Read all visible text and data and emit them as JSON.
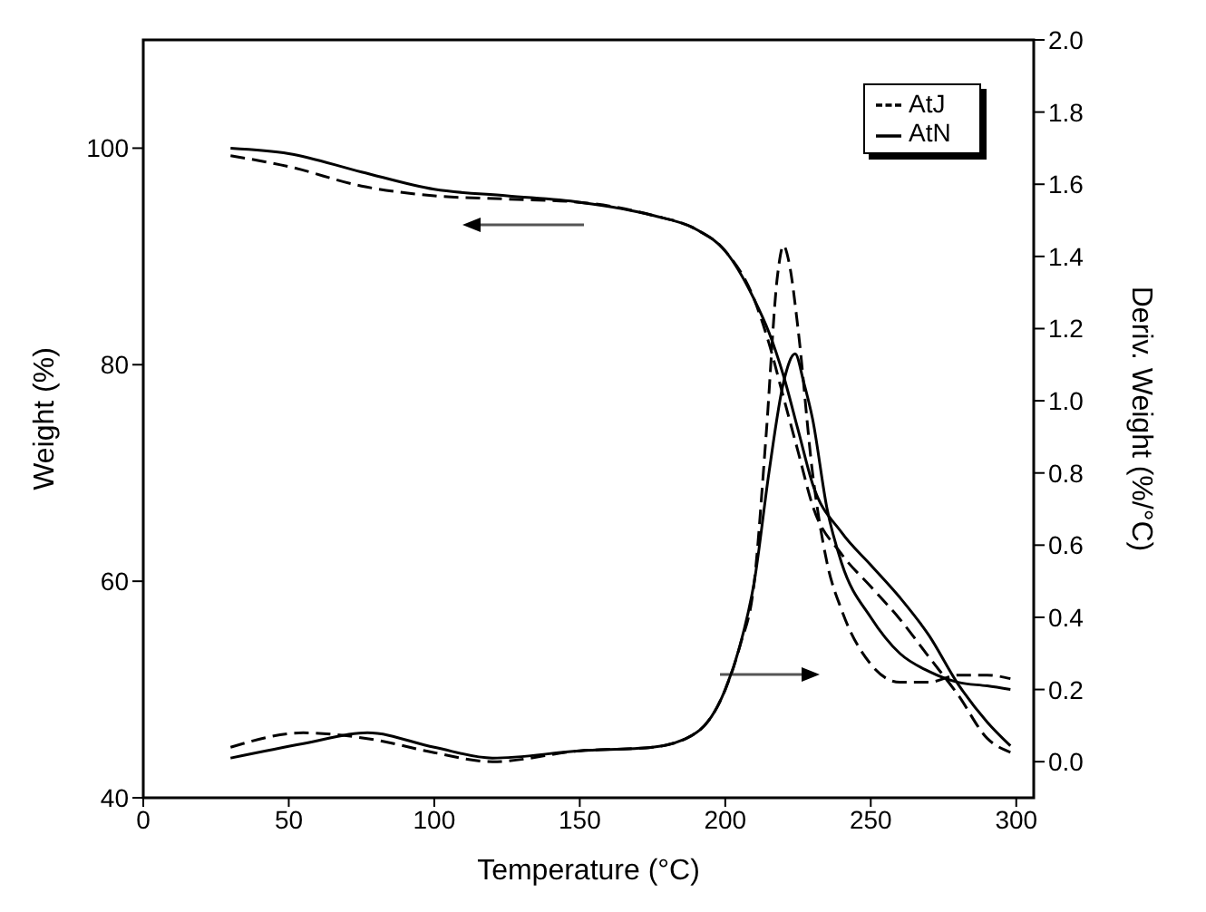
{
  "chart_data": {
    "type": "line",
    "xlabel": "Temperature (°C)",
    "ylabel": "Weight (%)",
    "y2label": "Deriv. Weight (%/°C)",
    "xlim": [
      0,
      306
    ],
    "xticks": [
      0,
      50,
      100,
      150,
      200,
      250,
      300
    ],
    "ylim": [
      40,
      110
    ],
    "yticks": [
      40,
      60,
      80,
      100
    ],
    "y2lim": [
      -0.1,
      2.0
    ],
    "y2ticks": [
      {
        "value": 0,
        "label": "0.0"
      },
      0.2,
      0.4,
      0.6,
      0.8,
      {
        "value": 1,
        "label": "1.0"
      },
      1.2,
      1.4,
      1.6,
      1.8,
      {
        "value": 2,
        "label": "2.0"
      }
    ],
    "legend": "top right",
    "grid": false,
    "marker": "none",
    "series": [
      {
        "name": "AtJ",
        "color": "#000000",
        "line_style": "dashed",
        "x": [
          30,
          50,
          75,
          100,
          125,
          150,
          175,
          190,
          200,
          210,
          215,
          220,
          225,
          230,
          240,
          250,
          260,
          270,
          280,
          290,
          298
        ],
        "values": [
          99.3,
          98.3,
          96.5,
          95.6,
          95.3,
          95,
          93.8,
          92.5,
          90.5,
          86,
          82,
          77,
          72,
          67,
          62.5,
          59.5,
          56.5,
          53,
          49.5,
          45.5,
          44.2
        ]
      },
      {
        "name": "AtN",
        "color": "#000000",
        "line_style": "solid",
        "x": [
          30,
          50,
          75,
          100,
          125,
          150,
          175,
          190,
          200,
          210,
          215,
          220,
          225,
          230,
          240,
          250,
          260,
          270,
          280,
          290,
          298
        ],
        "values": [
          100,
          99.5,
          97.8,
          96.2,
          95.6,
          95,
          93.8,
          92.5,
          90.5,
          86,
          83,
          79,
          74,
          69,
          64.5,
          61.5,
          58.5,
          55,
          50.5,
          47,
          44.8
        ]
      },
      {
        "color": "#000000",
        "line_style": "dashed",
        "axis": "y2",
        "x": [
          30,
          55,
          80,
          100,
          120,
          150,
          175,
          190,
          200,
          205,
          210,
          214,
          218,
          220,
          222,
          225,
          230,
          235,
          240,
          250,
          260,
          270,
          280,
          290,
          298
        ],
        "values": [
          0.04,
          0.08,
          0.06,
          0.025,
          0.0,
          0.03,
          0.04,
          0.08,
          0.2,
          0.32,
          0.5,
          0.9,
          1.35,
          1.43,
          1.38,
          1.2,
          0.8,
          0.55,
          0.42,
          0.27,
          0.22,
          0.22,
          0.24,
          0.24,
          0.23
        ]
      },
      {
        "color": "#000000",
        "line_style": "solid",
        "axis": "y2",
        "x": [
          30,
          55,
          77,
          100,
          120,
          150,
          175,
          190,
          200,
          205,
          210,
          215,
          220,
          224,
          227,
          230,
          235,
          240,
          250,
          260,
          270,
          280,
          290,
          298
        ],
        "values": [
          0.01,
          0.05,
          0.08,
          0.04,
          0.01,
          0.03,
          0.04,
          0.08,
          0.2,
          0.32,
          0.5,
          0.8,
          1.05,
          1.13,
          1.05,
          0.95,
          0.7,
          0.55,
          0.4,
          0.3,
          0.25,
          0.22,
          0.21,
          0.2
        ]
      }
    ]
  }
}
